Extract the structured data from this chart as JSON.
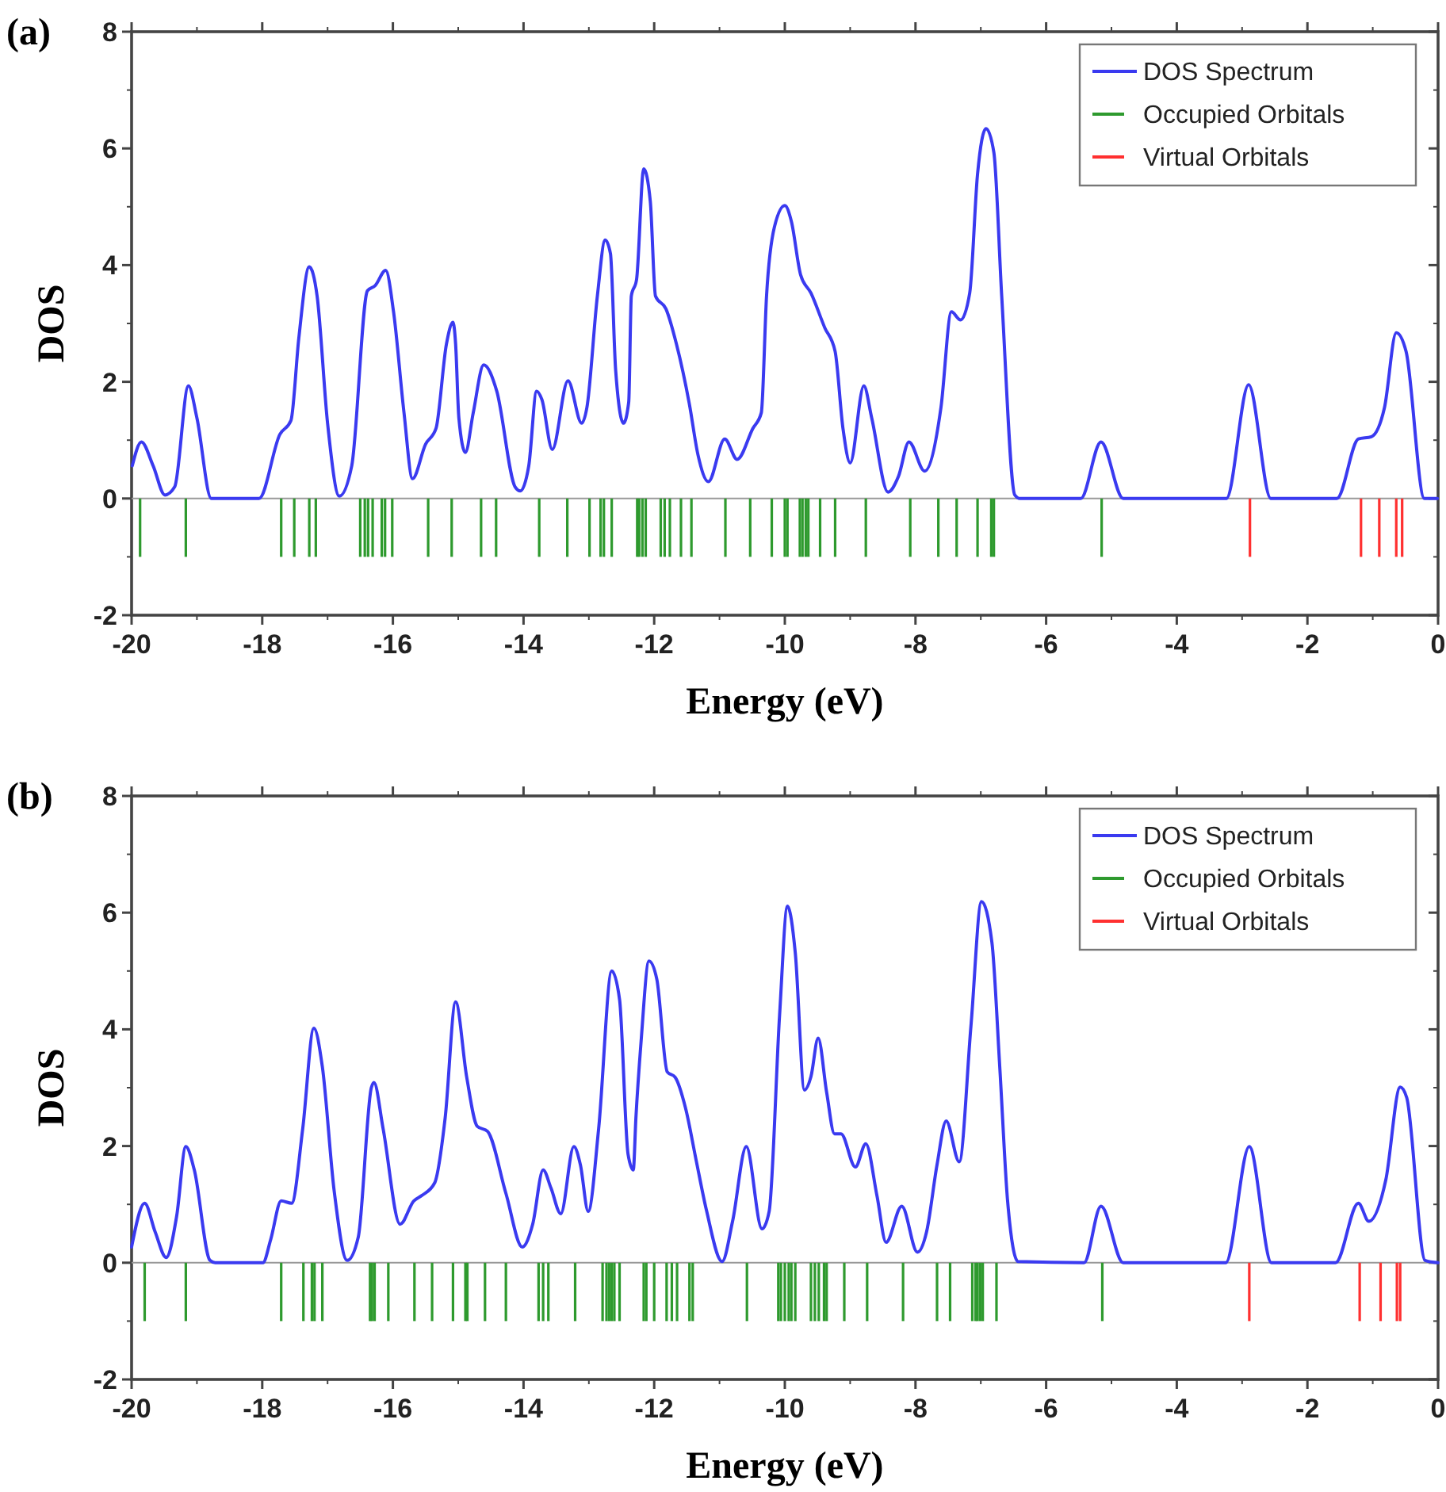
{
  "chart_data": [
    {
      "type": "line",
      "title": "(a)",
      "xlabel": "Energy (eV)",
      "ylabel": "DOS",
      "xlim": [
        -20,
        0
      ],
      "xticks": [
        -20,
        -18,
        -16,
        -14,
        -12,
        -10,
        -8,
        -6,
        -4,
        -2,
        0
      ],
      "ylim": [
        -2,
        8
      ],
      "yticks": [
        -2,
        0,
        2,
        4,
        6,
        8
      ],
      "legend": "top right",
      "series": [
        {
          "name": "DOS Spectrum",
          "color": "#3a3af0",
          "x": [
            -19.99,
            -19.85,
            -19.67,
            -19.49,
            -19.34,
            -19.13,
            -19.0,
            -18.78,
            -18.05,
            -17.73,
            -17.56,
            -17.44,
            -17.28,
            -17.16,
            -17.0,
            -16.82,
            -16.63,
            -16.39,
            -16.27,
            -16.11,
            -15.99,
            -15.83,
            -15.7,
            -15.5,
            -15.34,
            -15.18,
            -15.08,
            -15.04,
            -14.99,
            -14.89,
            -14.77,
            -14.61,
            -14.41,
            -14.13,
            -14.05,
            -13.92,
            -13.8,
            -13.72,
            -13.56,
            -13.32,
            -13.11,
            -13.03,
            -12.87,
            -12.75,
            -12.67,
            -12.59,
            -12.47,
            -12.39,
            -12.35,
            -12.27,
            -12.16,
            -12.06,
            -11.98,
            -11.82,
            -11.66,
            -11.46,
            -11.33,
            -11.17,
            -10.92,
            -10.73,
            -10.49,
            -10.36,
            -10.28,
            -10.16,
            -10.0,
            -9.9,
            -9.76,
            -9.6,
            -9.39,
            -9.23,
            -9.11,
            -9.0,
            -8.79,
            -8.67,
            -8.42,
            -8.26,
            -8.1,
            -7.86,
            -7.61,
            -7.45,
            -7.31,
            -7.17,
            -7.05,
            -6.92,
            -6.8,
            -6.68,
            -6.48,
            -6.4,
            -5.47,
            -5.16,
            -4.82,
            -3.24,
            -2.9,
            -2.56,
            -1.55,
            -1.22,
            -1.02,
            -0.82,
            -0.64,
            -0.49,
            -0.21,
            -0.01
          ],
          "values": [
            0.56,
            0.97,
            0.56,
            0.06,
            0.2,
            1.93,
            1.38,
            0,
            0,
            1.1,
            1.34,
            2.75,
            3.97,
            3.47,
            1.29,
            0.04,
            0.56,
            3.56,
            3.65,
            3.91,
            3.2,
            1.47,
            0.34,
            0.93,
            1.2,
            2.65,
            3.02,
            2.65,
            1.38,
            0.79,
            1.47,
            2.29,
            1.84,
            0.2,
            0.13,
            0.56,
            1.84,
            1.7,
            0.84,
            2.02,
            1.29,
            1.56,
            3.47,
            4.43,
            4.2,
            2.2,
            1.29,
            1.65,
            3.47,
            3.75,
            5.65,
            5.1,
            3.47,
            3.25,
            2.65,
            1.61,
            0.75,
            0.29,
            1.02,
            0.67,
            1.2,
            1.47,
            3.47,
            4.65,
            5.02,
            4.75,
            3.84,
            3.52,
            2.93,
            2.52,
            1.2,
            0.61,
            1.93,
            1.38,
            0.11,
            0.38,
            0.97,
            0.47,
            1.56,
            3.2,
            3.06,
            3.52,
            5.56,
            6.34,
            5.93,
            3.47,
            0.06,
            0,
            0,
            0.97,
            0,
            0,
            1.95,
            0,
            0,
            1.02,
            1.06,
            1.56,
            2.84,
            2.52,
            0,
            0
          ]
        },
        {
          "name": "Occupied Orbitals",
          "type": "bar",
          "color": "#2e9a2e",
          "x": [
            -19.87,
            -19.17,
            -17.71,
            -17.51,
            -17.28,
            -17.18,
            -16.5,
            -16.43,
            -16.38,
            -16.31,
            -16.17,
            -16.12,
            -16.01,
            -15.46,
            -15.1,
            -14.65,
            -14.42,
            -13.76,
            -13.33,
            -12.99,
            -12.82,
            -12.77,
            -12.65,
            -12.26,
            -12.23,
            -12.18,
            -12.13,
            -11.9,
            -11.84,
            -11.76,
            -11.59,
            -11.43,
            -10.91,
            -10.53,
            -10.2,
            -10.0,
            -9.96,
            -9.77,
            -9.73,
            -9.68,
            -9.64,
            -9.46,
            -9.23,
            -8.76,
            -8.08,
            -7.65,
            -7.37,
            -7.05,
            -6.84,
            -6.8,
            -5.15
          ],
          "values": [
            -1,
            -1,
            -1,
            -1,
            -1,
            -1,
            -1,
            -1,
            -1,
            -1,
            -1,
            -1,
            -1,
            -1,
            -1,
            -1,
            -1,
            -1,
            -1,
            -1,
            -1,
            -1,
            -1,
            -1,
            -1,
            -1,
            -1,
            -1,
            -1,
            -1,
            -1,
            -1,
            -1,
            -1,
            -1,
            -1,
            -1,
            -1,
            -1,
            -1,
            -1,
            -1,
            -1,
            -1,
            -1,
            -1,
            -1,
            -1,
            -1,
            -1,
            -1
          ]
        },
        {
          "name": "Virtual Orbitals",
          "type": "bar",
          "color": "#ff3030",
          "x": [
            -2.88,
            -1.18,
            -0.9,
            -0.64,
            -0.55
          ],
          "values": [
            -1,
            -1,
            -1,
            -1,
            -1
          ]
        }
      ]
    },
    {
      "type": "line",
      "title": "(b)",
      "xlabel": "Energy (eV)",
      "ylabel": "DOS",
      "xlim": [
        -20,
        0
      ],
      "xticks": [
        -20,
        -18,
        -16,
        -14,
        -12,
        -10,
        -8,
        -6,
        -4,
        -2,
        0
      ],
      "ylim": [
        -2,
        8
      ],
      "yticks": [
        -2,
        0,
        2,
        4,
        6,
        8
      ],
      "legend": "top right",
      "series": [
        {
          "name": "DOS Spectrum",
          "color": "#3a3af0",
          "x": [
            -20.0,
            -19.8,
            -19.64,
            -19.47,
            -19.31,
            -19.17,
            -19.04,
            -18.8,
            -18.72,
            -17.99,
            -17.87,
            -17.71,
            -17.55,
            -17.38,
            -17.21,
            -17.08,
            -16.9,
            -16.7,
            -16.53,
            -16.33,
            -16.29,
            -16.15,
            -15.89,
            -15.68,
            -15.56,
            -15.36,
            -15.2,
            -15.04,
            -14.87,
            -14.71,
            -14.55,
            -14.27,
            -14.02,
            -13.86,
            -13.7,
            -13.58,
            -13.43,
            -13.23,
            -13.13,
            -13.01,
            -12.85,
            -12.65,
            -12.53,
            -12.4,
            -12.32,
            -12.28,
            -12.2,
            -12.08,
            -11.96,
            -11.8,
            -11.68,
            -11.52,
            -11.36,
            -11.2,
            -10.96,
            -10.8,
            -10.59,
            -10.35,
            -10.24,
            -10.08,
            -9.96,
            -9.84,
            -9.7,
            -9.6,
            -9.49,
            -9.36,
            -9.24,
            -9.14,
            -8.92,
            -8.76,
            -8.59,
            -8.45,
            -8.21,
            -7.97,
            -7.83,
            -7.67,
            -7.53,
            -7.33,
            -7.15,
            -6.99,
            -6.83,
            -6.71,
            -6.59,
            -6.43,
            -5.42,
            -5.16,
            -4.82,
            -3.25,
            -2.89,
            -2.55,
            -1.57,
            -1.22,
            -1.06,
            -0.8,
            -0.58,
            -0.48,
            -0.2,
            0
          ],
          "values": [
            0.27,
            1.02,
            0.53,
            0.09,
            0.8,
            1.99,
            1.59,
            0.04,
            0,
            0,
            0.4,
            1.06,
            1.02,
            2.3,
            4.02,
            3.36,
            1.24,
            0.04,
            0.44,
            3.0,
            3.09,
            2.3,
            0.66,
            1.06,
            1.15,
            1.37,
            2.48,
            4.47,
            3.18,
            2.34,
            2.25,
            1.19,
            0.27,
            0.66,
            1.59,
            1.28,
            0.84,
            1.99,
            1.68,
            0.88,
            2.3,
            5.0,
            4.51,
            1.86,
            1.59,
            2.48,
            3.8,
            5.17,
            4.86,
            3.27,
            3.18,
            2.65,
            1.77,
            0.9,
            0.02,
            0.71,
            1.99,
            0.58,
            0.88,
            4.25,
            6.11,
            5.31,
            2.96,
            3.19,
            3.85,
            2.92,
            2.21,
            2.21,
            1.64,
            2.04,
            1.15,
            0.35,
            0.97,
            0.18,
            0.53,
            1.68,
            2.43,
            1.73,
            4.07,
            6.19,
            5.49,
            3.36,
            1.06,
            0.02,
            0,
            0.97,
            0,
            0,
            1.99,
            0,
            0,
            1.02,
            0.71,
            1.42,
            3.01,
            2.83,
            0.04,
            0
          ]
        },
        {
          "name": "Occupied Orbitals",
          "type": "bar",
          "color": "#2e9a2e",
          "x": [
            -19.8,
            -19.17,
            -17.71,
            -17.37,
            -17.24,
            -17.2,
            -17.08,
            -16.35,
            -16.32,
            -16.28,
            -16.07,
            -15.67,
            -15.4,
            -15.08,
            -14.89,
            -14.86,
            -14.59,
            -14.27,
            -13.77,
            -13.7,
            -13.62,
            -13.21,
            -12.79,
            -12.73,
            -12.69,
            -12.65,
            -12.61,
            -12.53,
            -12.16,
            -12.12,
            -12.0,
            -11.81,
            -11.73,
            -11.65,
            -11.46,
            -11.41,
            -10.58,
            -10.1,
            -10.06,
            -10.0,
            -9.94,
            -9.9,
            -9.84,
            -9.6,
            -9.54,
            -9.48,
            -9.4,
            -9.36,
            -9.09,
            -8.74,
            -8.19,
            -7.67,
            -7.47,
            -7.13,
            -7.08,
            -7.05,
            -7.01,
            -6.97,
            -6.76,
            -5.14
          ],
          "values": [
            -1,
            -1,
            -1,
            -1,
            -1,
            -1,
            -1,
            -1,
            -1,
            -1,
            -1,
            -1,
            -1,
            -1,
            -1,
            -1,
            -1,
            -1,
            -1,
            -1,
            -1,
            -1,
            -1,
            -1,
            -1,
            -1,
            -1,
            -1,
            -1,
            -1,
            -1,
            -1,
            -1,
            -1,
            -1,
            -1,
            -1,
            -1,
            -1,
            -1,
            -1,
            -1,
            -1,
            -1,
            -1,
            -1,
            -1,
            -1,
            -1,
            -1,
            -1,
            -1,
            -1,
            -1,
            -1,
            -1,
            -1,
            -1,
            -1,
            -1
          ]
        },
        {
          "name": "Virtual Orbitals",
          "type": "bar",
          "color": "#ff3030",
          "x": [
            -2.89,
            -1.2,
            -0.88,
            -0.63,
            -0.58
          ],
          "values": [
            -1,
            -1,
            -1,
            -1,
            -1
          ]
        }
      ]
    }
  ]
}
